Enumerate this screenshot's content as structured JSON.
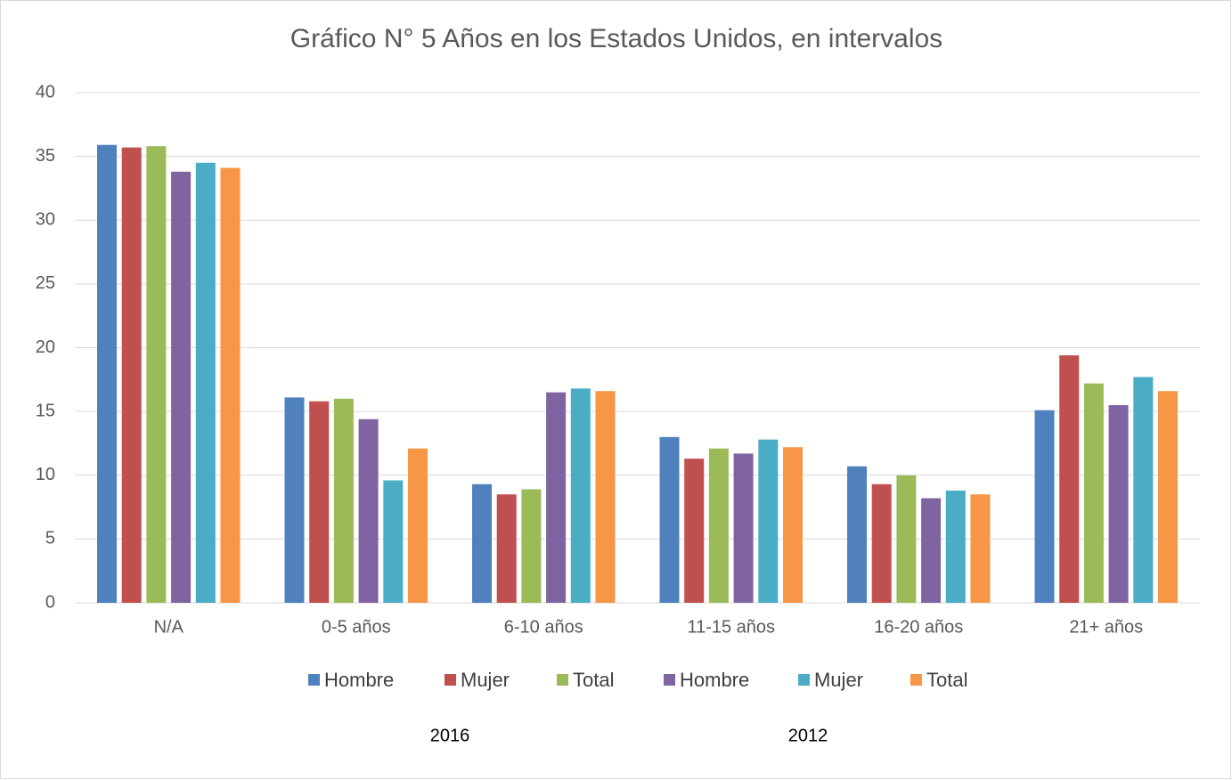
{
  "chart_data": {
    "type": "bar",
    "title": "Gráfico N° 5 Años en los Estados Unidos, en intervalos",
    "categories": [
      "N/A",
      "0-5 años",
      "6-10 años",
      "11-15 años",
      "16-20 años",
      "21+ años"
    ],
    "series": [
      {
        "name": "Hombre",
        "color": "#4f81bd",
        "values": [
          35.9,
          16.1,
          9.3,
          13.0,
          10.7,
          15.1
        ]
      },
      {
        "name": "Mujer",
        "color": "#c0504d",
        "values": [
          35.7,
          15.8,
          8.5,
          11.3,
          9.3,
          19.4
        ]
      },
      {
        "name": "Total",
        "color": "#9bbb59",
        "values": [
          35.8,
          16.0,
          8.9,
          12.1,
          10.0,
          17.2
        ]
      },
      {
        "name": "Hombre",
        "color": "#8064a2",
        "values": [
          33.8,
          14.4,
          16.5,
          11.7,
          8.2,
          15.5
        ]
      },
      {
        "name": "Mujer",
        "color": "#4bacc6",
        "values": [
          34.5,
          9.6,
          16.8,
          12.8,
          8.8,
          17.7
        ]
      },
      {
        "name": "Total",
        "color": "#f79646",
        "values": [
          34.1,
          12.1,
          16.6,
          12.2,
          8.5,
          16.6
        ]
      }
    ],
    "legend_groups": [
      "2016",
      "2012"
    ],
    "ylim": [
      0,
      40
    ],
    "yticks": [
      0,
      5,
      10,
      15,
      20,
      25,
      30,
      35,
      40
    ],
    "grid": true
  }
}
